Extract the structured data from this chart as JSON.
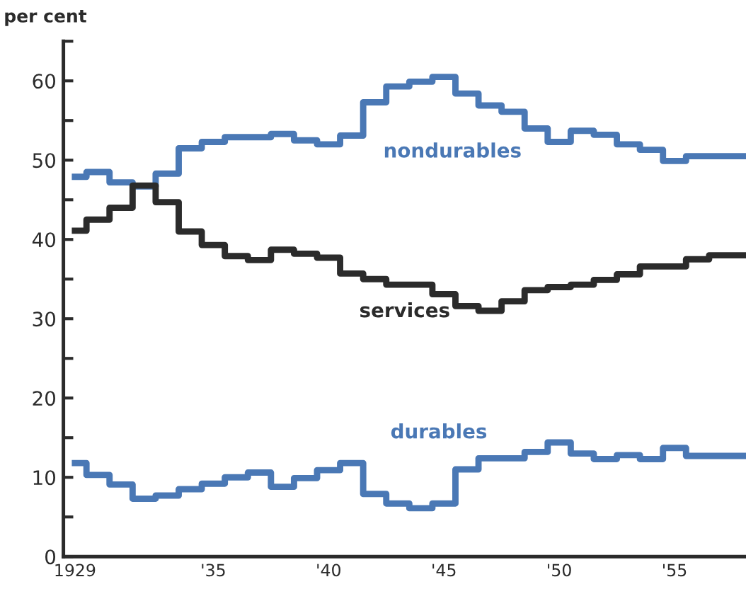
{
  "chart_data": {
    "type": "step",
    "ylabel": "per cent",
    "x": [
      1929,
      1930,
      1931,
      1932,
      1933,
      1934,
      1935,
      1936,
      1937,
      1938,
      1939,
      1940,
      1941,
      1942,
      1943,
      1944,
      1945,
      1946,
      1947,
      1948,
      1949,
      1950,
      1951,
      1952,
      1953,
      1954,
      1955,
      1956,
      1957,
      1958
    ],
    "series": [
      {
        "color": "#4a78b5",
        "values": [
          47.9,
          48.5,
          47.2,
          46.7,
          48.3,
          51.5,
          52.3,
          52.9,
          52.9,
          53.3,
          52.5,
          52.0,
          53.1,
          57.3,
          59.3,
          59.9,
          60.5,
          58.4,
          56.9,
          56.1,
          54.0,
          52.3,
          53.7,
          53.2,
          52.0,
          51.3,
          49.9,
          50.5,
          50.5,
          50.5
        ]
      },
      {
        "color": "#2b2b2b",
        "values": [
          41.1,
          42.5,
          44.0,
          46.8,
          44.7,
          41.0,
          39.3,
          37.9,
          37.4,
          38.7,
          38.2,
          37.7,
          35.7,
          35.0,
          34.3,
          34.3,
          33.1,
          31.6,
          31.0,
          32.2,
          33.6,
          34.0,
          34.3,
          34.9,
          35.6,
          36.6,
          36.6,
          37.5,
          38.0,
          38.0
        ]
      },
      {
        "color": "#4a78b5",
        "values": [
          11.8,
          10.3,
          9.1,
          7.3,
          7.7,
          8.5,
          9.2,
          10.0,
          10.6,
          8.8,
          9.9,
          10.9,
          11.8,
          7.9,
          6.7,
          6.1,
          6.7,
          11.0,
          12.4,
          12.4,
          13.2,
          14.4,
          13.0,
          12.3,
          12.8,
          12.3,
          13.7,
          12.7,
          12.7,
          12.7
        ]
      }
    ],
    "annotations": [
      "nondurables",
      "services",
      "durables"
    ],
    "xlim": [
      1928.5,
      1958.1
    ],
    "xticks": [
      1929,
      {
        "value": 1935,
        "label": "'35"
      },
      {
        "value": 1940,
        "label": "'40"
      },
      {
        "value": 1945,
        "label": "'45"
      },
      {
        "value": 1950,
        "label": "'50"
      },
      {
        "value": 1955,
        "label": "'55"
      }
    ],
    "ylim": [
      0,
      65
    ],
    "yticks": [
      0,
      {
        "value": 5,
        "label": null
      },
      10,
      {
        "value": 15,
        "label": null
      },
      20,
      {
        "value": 25,
        "label": null
      },
      30,
      {
        "value": 35,
        "label": null
      },
      40,
      {
        "value": 45,
        "label": null
      },
      50,
      {
        "value": 55,
        "label": null
      },
      60,
      {
        "value": 65,
        "label": null
      }
    ],
    "grid": false,
    "legend": false
  }
}
